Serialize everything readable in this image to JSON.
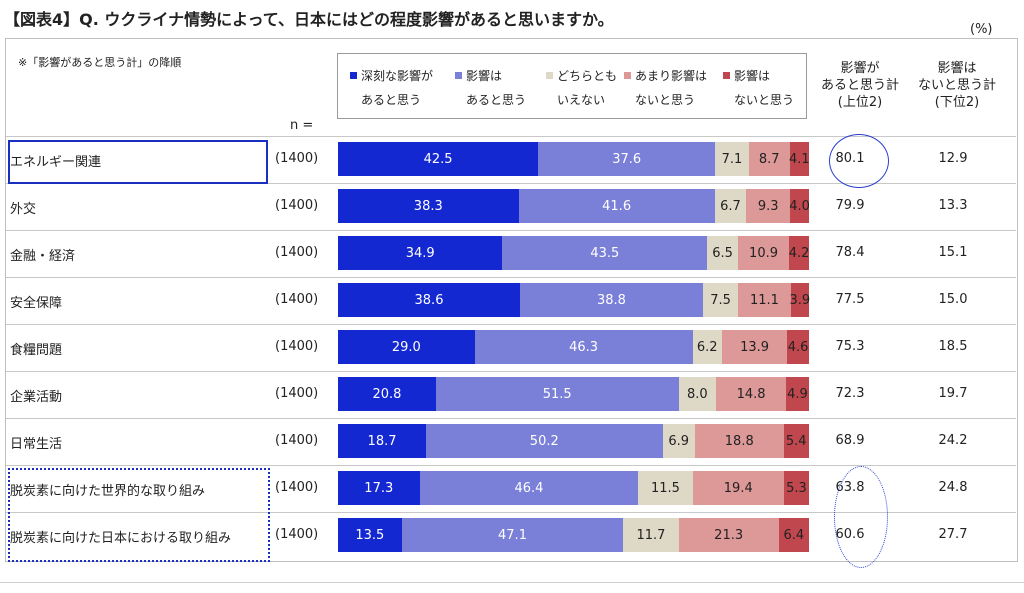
{
  "title": "【図表4】Q. ウクライナ情勢によって、日本にはどの程度影響があると思いますか。",
  "unit": "(%)",
  "note": "※「影響があると思う計」の降順",
  "n_label": "n =",
  "legend": [
    {
      "line1": "深刻な影響が",
      "line2": "あると思う",
      "color": "#1428d2"
    },
    {
      "line1": "影響は",
      "line2": "あると思う",
      "color": "#7a7fd8"
    },
    {
      "line1": "どちらとも",
      "line2": "いえない",
      "color": "#ddd9c6"
    },
    {
      "line1": "あまり影響は",
      "line2": "ないと思う",
      "color": "#dd9898"
    },
    {
      "line1": "影響は",
      "line2": "ないと思う",
      "color": "#c0474d"
    }
  ],
  "col_headers": {
    "total_l1": "影響が",
    "total_l2": "あると思う計",
    "total_l3": "(上位2)",
    "neg_l1": "影響は",
    "neg_l2": "ないと思う計",
    "neg_l3": "(下位2)"
  },
  "chart_data": {
    "type": "bar",
    "stacked": true,
    "orientation": "horizontal",
    "categories": [
      "エネルギー関連",
      "外交",
      "金融・経済",
      "安全保障",
      "食糧問題",
      "企業活動",
      "日常生活",
      "脱炭素に向けた世界的な取り組み",
      "脱炭素に向けた日本における取り組み"
    ],
    "n": [
      "(1400)",
      "(1400)",
      "(1400)",
      "(1400)",
      "(1400)",
      "(1400)",
      "(1400)",
      "(1400)",
      "(1400)"
    ],
    "series": [
      {
        "name": "深刻な影響があると思う",
        "values": [
          42.5,
          38.3,
          34.9,
          38.6,
          29.0,
          20.8,
          18.7,
          17.3,
          13.5
        ]
      },
      {
        "name": "影響はあると思う",
        "values": [
          37.6,
          41.6,
          43.5,
          38.8,
          46.3,
          51.5,
          50.2,
          46.4,
          47.1
        ]
      },
      {
        "name": "どちらともいえない",
        "values": [
          7.1,
          6.7,
          6.5,
          7.5,
          6.2,
          8.0,
          6.9,
          11.5,
          11.7
        ]
      },
      {
        "name": "あまり影響はないと思う",
        "values": [
          8.7,
          9.3,
          10.9,
          11.1,
          13.9,
          14.8,
          18.8,
          19.4,
          21.3
        ]
      },
      {
        "name": "影響はないと思う",
        "values": [
          4.1,
          4.0,
          4.2,
          3.9,
          4.6,
          4.9,
          5.4,
          5.3,
          6.4
        ]
      }
    ],
    "top2_total": [
      80.1,
      79.9,
      78.4,
      77.5,
      75.3,
      72.3,
      68.9,
      63.8,
      60.6
    ],
    "bottom2_total": [
      12.9,
      13.3,
      15.1,
      15.0,
      18.5,
      19.7,
      24.2,
      24.8,
      27.7
    ]
  }
}
